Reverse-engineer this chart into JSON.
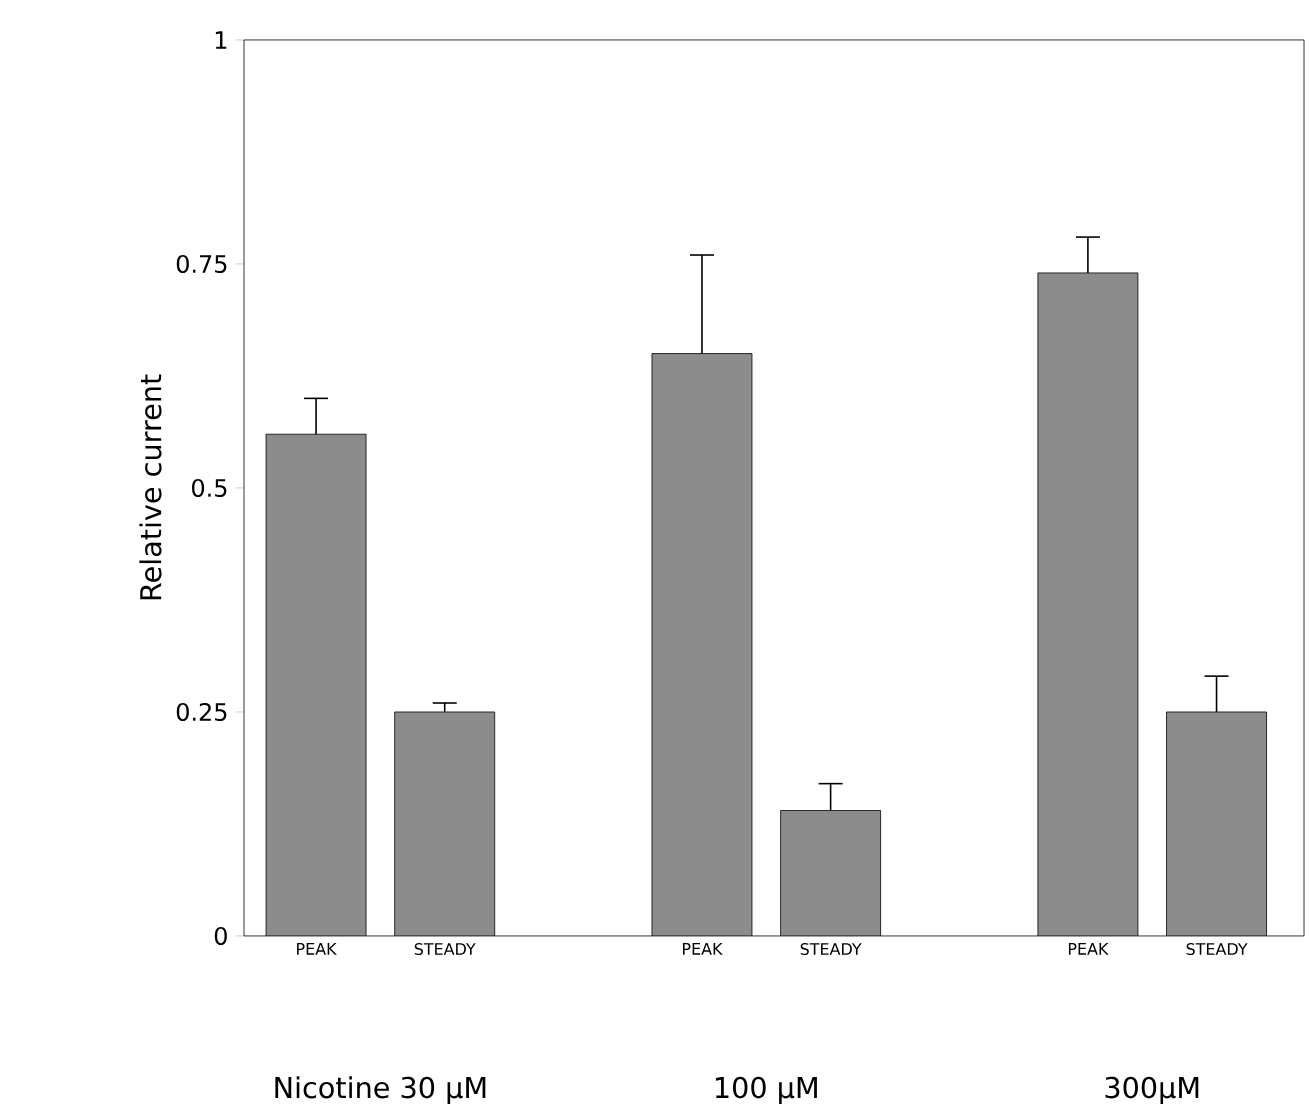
{
  "chart_data": {
    "type": "bar",
    "ylabel": "Relative current",
    "categories": [
      "PEAK",
      "STEADY",
      null,
      "PEAK",
      "STEADY",
      null,
      "PEAK",
      "STEADY"
    ],
    "values": [
      0.56,
      0.25,
      null,
      0.65,
      0.14,
      null,
      0.74,
      0.25
    ],
    "errors": [
      [
        0.56,
        0.6
      ],
      [
        0.25,
        0.26
      ],
      null,
      [
        0.65,
        0.76
      ],
      [
        0.14,
        0.17
      ],
      null,
      [
        0.74,
        0.78
      ],
      [
        0.25,
        0.29
      ]
    ],
    "color": "#8c8c8c",
    "ylim": [
      0,
      1
    ],
    "yticks": [
      0,
      0.25,
      0.5,
      0.75,
      1
    ],
    "grid": false,
    "annotations": [
      "Nicotine 30 μM",
      "100 μM",
      "300μM"
    ]
  }
}
